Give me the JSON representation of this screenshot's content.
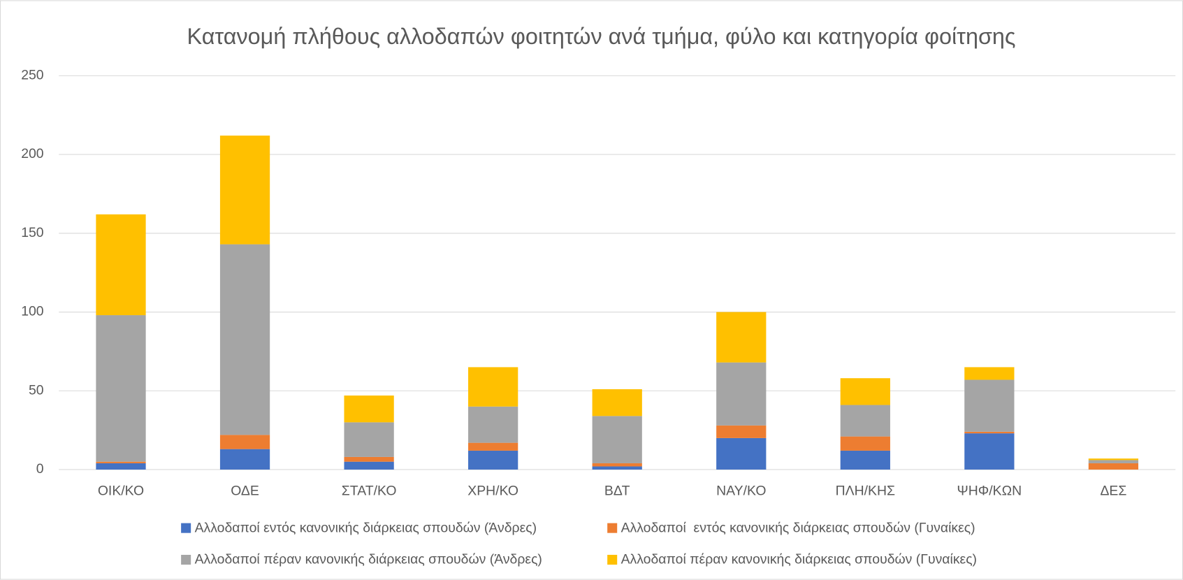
{
  "chart_data": {
    "type": "stacked_bar",
    "title": "Κατανομή πλήθους αλλοδαπών φοιτητών ανά τμήμα, φύλο και κατηγορία φοίτησης",
    "categories": [
      "ΟΙΚ/ΚΟ",
      "ΟΔΕ",
      "ΣΤΑΤ/ΚΟ",
      "ΧΡΗ/ΚΟ",
      "ΒΔΤ",
      "ΝΑΥ/ΚΟ",
      "ΠΛΗ/ΚΗΣ",
      "ΨΗΦ/ΚΩΝ",
      "ΔΕΣ"
    ],
    "series": [
      {
        "name": "Αλλοδαποί εντός κανονικής διάρκειας σπουδών (Άνδρες)",
        "color": "#4472c4",
        "values": [
          4,
          13,
          5,
          12,
          2,
          20,
          12,
          23,
          0
        ]
      },
      {
        "name": "Αλλοδαποί  εντός κανονικής διάρκειας σπουδών (Γυναίκες)",
        "color": "#ed7d31",
        "values": [
          1,
          9,
          3,
          5,
          2,
          8,
          9,
          1,
          4
        ]
      },
      {
        "name": "Αλλοδαποί πέραν κανονικής διάρκειας σπουδών (Άνδρες)",
        "color": "#a5a5a5",
        "values": [
          93,
          121,
          22,
          23,
          30,
          40,
          20,
          33,
          2
        ]
      },
      {
        "name": "Αλλοδαποί πέραν κανονικής διάρκειας σπουδών (Γυναίκες)",
        "color": "#ffc000",
        "values": [
          64,
          69,
          17,
          25,
          17,
          32,
          17,
          8,
          1
        ]
      }
    ],
    "ylim": [
      0,
      250
    ],
    "yticks": [
      0,
      50,
      100,
      150,
      200,
      250
    ],
    "grid": true,
    "legend": "bottom"
  }
}
